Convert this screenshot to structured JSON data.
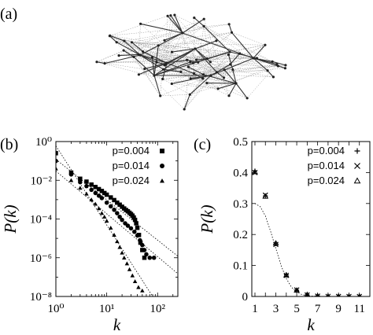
{
  "panels": {
    "a": "(a)",
    "b": "(b)",
    "c": "(c)"
  },
  "chart_data": [
    {
      "panel": "(a)",
      "type": "network",
      "description_note": "",
      "hubs": 9,
      "edge_styles": [
        "tree-edge (solid dark)",
        "shortcut-edge (dotted light)"
      ]
    },
    {
      "panel": "(b)",
      "type": "scatter",
      "scale": "log-log",
      "xlabel": "k",
      "ylabel": "P(k)",
      "xlim": [
        1,
        250
      ],
      "ylim": [
        1e-08,
        1
      ],
      "xticks": [
        {
          "v": 1,
          "l": "10⁰"
        },
        {
          "v": 10,
          "l": "10¹"
        },
        {
          "v": 100,
          "l": "10²"
        }
      ],
      "yticks": [
        {
          "v": 1,
          "l": "10⁰"
        },
        {
          "v": 0.01,
          "l": "10⁻²"
        },
        {
          "v": 0.0001,
          "l": "10⁻⁴"
        },
        {
          "v": 1e-06,
          "l": "10⁻⁶"
        },
        {
          "v": 1e-08,
          "l": "10⁻⁸"
        }
      ],
      "legend_position": "top-right",
      "series": [
        {
          "name": "p=0.004",
          "marker": "square",
          "points": [
            [
              1,
              0.25
            ],
            [
              2,
              0.025
            ],
            [
              3,
              0.012
            ],
            [
              4,
              0.0085
            ],
            [
              5,
              0.006
            ],
            [
              6,
              0.0045
            ],
            [
              7,
              0.0035
            ],
            [
              8,
              0.0028
            ],
            [
              9,
              0.0022
            ],
            [
              10,
              0.0018
            ],
            [
              12,
              0.0013
            ],
            [
              14,
              0.00095
            ],
            [
              16,
              0.0007
            ],
            [
              18,
              0.00055
            ],
            [
              20,
              0.00043
            ],
            [
              22,
              0.00035
            ],
            [
              24,
              0.00029
            ],
            [
              26,
              0.00025
            ],
            [
              28,
              0.00021
            ],
            [
              30,
              0.00018
            ],
            [
              32,
              0.00015
            ],
            [
              34,
              0.00012
            ],
            [
              36,
              9e-05
            ],
            [
              38,
              6e-05
            ],
            [
              40,
              3.5e-05
            ],
            [
              43,
              1.5e-05
            ],
            [
              46,
              6e-06
            ],
            [
              50,
              2.5e-06
            ],
            [
              55,
              1e-06
            ]
          ]
        },
        {
          "name": "p=0.014",
          "marker": "circle",
          "points": [
            [
              1,
              0.1
            ],
            [
              2,
              0.02
            ],
            [
              3,
              0.008
            ],
            [
              4,
              0.005
            ],
            [
              5,
              0.0032
            ],
            [
              6,
              0.0022
            ],
            [
              7,
              0.0016
            ],
            [
              8,
              0.0012
            ],
            [
              10,
              0.0007
            ],
            [
              12,
              0.00045
            ],
            [
              14,
              0.0003
            ],
            [
              16,
              0.0002
            ],
            [
              18,
              0.00013
            ],
            [
              20,
              9e-05
            ],
            [
              23,
              6e-05
            ],
            [
              26,
              4.5e-05
            ],
            [
              30,
              3.3e-05
            ],
            [
              35,
              2.2e-05
            ],
            [
              40,
              1.4e-05
            ],
            [
              45,
              8e-06
            ],
            [
              50,
              4.5e-06
            ],
            [
              55,
              2.5e-06
            ],
            [
              60,
              1.5e-06
            ],
            [
              70,
              1e-06
            ],
            [
              85,
              1e-06
            ]
          ]
        },
        {
          "name": "p=0.024",
          "marker": "triangle",
          "points": [
            [
              1,
              0.04
            ],
            [
              2,
              0.01
            ],
            [
              3,
              0.004
            ],
            [
              4,
              0.002
            ],
            [
              5,
              0.001
            ],
            [
              6,
              0.0006
            ],
            [
              7,
              0.00035
            ],
            [
              8,
              0.0002
            ],
            [
              9,
              0.00013
            ],
            [
              10,
              8e-05
            ],
            [
              12,
              3.5e-05
            ],
            [
              14,
              1.5e-05
            ],
            [
              16,
              7e-06
            ],
            [
              18,
              3.5e-06
            ],
            [
              20,
              1.8e-06
            ],
            [
              22,
              1e-06
            ],
            [
              25,
              5e-07
            ],
            [
              28,
              2.5e-07
            ],
            [
              32,
              1.2e-07
            ],
            [
              36,
              6e-08
            ],
            [
              42,
              3e-08
            ],
            [
              50,
              2e-08
            ]
          ]
        }
      ],
      "fit_lines": [
        {
          "style": "dotted",
          "points": [
            [
              1,
              0.12
            ],
            [
              250,
              1.2e-06
            ]
          ]
        },
        {
          "style": "dotted",
          "points": [
            [
              1,
              0.03
            ],
            [
              250,
              1.5e-07
            ]
          ]
        },
        {
          "style": "dotted",
          "points": [
            [
              1,
              0.6
            ],
            [
              80,
              1e-08
            ]
          ]
        }
      ]
    },
    {
      "panel": "(c)",
      "type": "scatter",
      "xlabel": "k",
      "ylabel": "P(k)",
      "xlim": [
        0.7,
        12
      ],
      "ylim": [
        0,
        0.5
      ],
      "xticks": [
        1,
        3,
        5,
        7,
        9,
        11
      ],
      "yticks": [
        0,
        0.1,
        0.2,
        0.3,
        0.4,
        0.5
      ],
      "legend_position": "top-right",
      "series": [
        {
          "name": "p=0.004",
          "marker": "plus",
          "points": [
            [
              1,
              0.405
            ],
            [
              2,
              0.325
            ],
            [
              3,
              0.17
            ],
            [
              4,
              0.07
            ],
            [
              5,
              0.02
            ],
            [
              6,
              0.005
            ],
            [
              7,
              0.0015
            ],
            [
              8,
              0.0004
            ],
            [
              9,
              0.0001
            ],
            [
              10,
              0.0
            ],
            [
              11,
              0.0
            ]
          ]
        },
        {
          "name": "p=0.014",
          "marker": "cross",
          "points": [
            [
              1,
              0.4
            ],
            [
              2,
              0.327
            ],
            [
              3,
              0.168
            ],
            [
              4,
              0.068
            ],
            [
              5,
              0.021
            ],
            [
              6,
              0.005
            ],
            [
              7,
              0.0012
            ],
            [
              8,
              0.0003
            ],
            [
              9,
              0.0001
            ],
            [
              10,
              0.0
            ],
            [
              11,
              0.0
            ]
          ]
        },
        {
          "name": "p=0.024",
          "marker": "triangle-open",
          "points": [
            [
              1,
              0.402
            ],
            [
              2,
              0.323
            ],
            [
              3,
              0.172
            ],
            [
              4,
              0.069
            ],
            [
              5,
              0.02
            ],
            [
              6,
              0.006
            ],
            [
              7,
              0.0013
            ],
            [
              8,
              0.0003
            ],
            [
              9,
              0.0001
            ],
            [
              10,
              0.0
            ],
            [
              11,
              0.0
            ]
          ]
        }
      ],
      "fit_curve": {
        "style": "dotted",
        "points": [
          [
            1,
            0.3
          ],
          [
            1.5,
            0.29
          ],
          [
            2,
            0.26
          ],
          [
            2.5,
            0.21
          ],
          [
            3,
            0.155
          ],
          [
            3.5,
            0.1
          ],
          [
            4,
            0.058
          ],
          [
            4.5,
            0.03
          ],
          [
            5,
            0.014
          ],
          [
            5.5,
            0.006
          ],
          [
            6,
            0.002
          ],
          [
            7,
            0.0003
          ],
          [
            8,
            0.0
          ]
        ]
      }
    }
  ]
}
